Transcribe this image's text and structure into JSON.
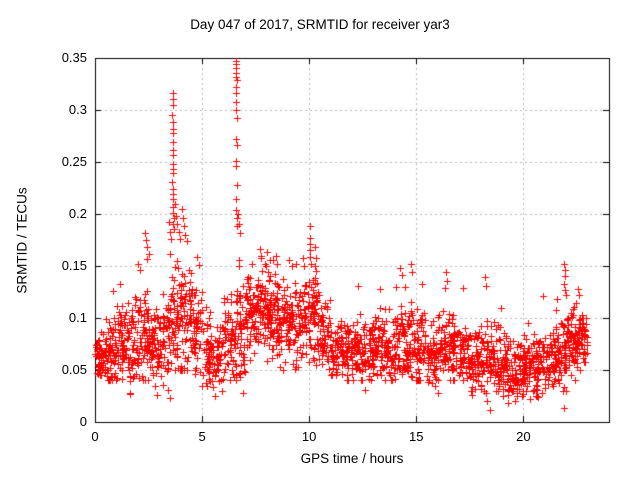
{
  "figure": {
    "background": "#ffffff",
    "axis_color": "#000000"
  },
  "chart_data": {
    "type": "scatter",
    "title": "Day 047 of 2017, SRMTID for receiver yar3",
    "xlabel": "GPS time / hours",
    "ylabel": "SRMTID / TECUs",
    "xlim": [
      0,
      24
    ],
    "ylim": [
      0,
      0.35
    ],
    "x_ticks": [
      {
        "v": 0,
        "label": "0"
      },
      {
        "v": 5,
        "label": "5"
      },
      {
        "v": 10,
        "label": "10"
      },
      {
        "v": 15,
        "label": "15"
      },
      {
        "v": 20,
        "label": "20"
      }
    ],
    "y_ticks": [
      {
        "v": 0,
        "label": "0"
      },
      {
        "v": 0.05,
        "label": "0.05"
      },
      {
        "v": 0.1,
        "label": "0.1"
      },
      {
        "v": 0.15,
        "label": "0.15"
      },
      {
        "v": 0.2,
        "label": "0.2"
      },
      {
        "v": 0.25,
        "label": "0.25"
      },
      {
        "v": 0.3,
        "label": "0.3"
      },
      {
        "v": 0.35,
        "label": "0.35"
      }
    ],
    "grid": {
      "show": true,
      "color": "#b9b9b9",
      "dash": [
        2,
        3
      ]
    },
    "legend": {
      "show": false
    },
    "series": [
      {
        "name": "SRMTID",
        "marker": {
          "shape": "plus",
          "color": "#ff0000",
          "size": 7,
          "line_width": 1
        },
        "points_explicit": [
          [
            3.62,
            0.316
          ],
          [
            3.64,
            0.311
          ],
          [
            3.63,
            0.305
          ],
          [
            3.61,
            0.295
          ],
          [
            3.66,
            0.288
          ],
          [
            3.62,
            0.282
          ],
          [
            3.64,
            0.278
          ],
          [
            3.63,
            0.269
          ],
          [
            3.65,
            0.262
          ],
          [
            3.62,
            0.257
          ],
          [
            3.66,
            0.248
          ],
          [
            3.63,
            0.243
          ],
          [
            3.64,
            0.239
          ],
          [
            3.61,
            0.231
          ],
          [
            3.65,
            0.224
          ],
          [
            3.63,
            0.219
          ],
          [
            3.66,
            0.214
          ],
          [
            3.62,
            0.207
          ],
          [
            3.64,
            0.201
          ],
          [
            3.67,
            0.196
          ],
          [
            3.63,
            0.19
          ],
          [
            3.68,
            0.186
          ],
          [
            3.45,
            0.192
          ],
          [
            3.5,
            0.183
          ],
          [
            3.55,
            0.176
          ],
          [
            3.72,
            0.21
          ],
          [
            3.78,
            0.198
          ],
          [
            3.85,
            0.19
          ],
          [
            3.9,
            0.183
          ],
          [
            3.95,
            0.176
          ],
          [
            4.05,
            0.205
          ],
          [
            4.1,
            0.196
          ],
          [
            4.15,
            0.188
          ],
          [
            4.22,
            0.18
          ],
          [
            4.3,
            0.174
          ],
          [
            2.35,
            0.182
          ],
          [
            2.4,
            0.175
          ],
          [
            2.45,
            0.168
          ],
          [
            2.5,
            0.162
          ],
          [
            2.42,
            0.157
          ],
          [
            6.57,
            0.347
          ],
          [
            6.59,
            0.344
          ],
          [
            6.58,
            0.34
          ],
          [
            6.6,
            0.336
          ],
          [
            6.57,
            0.332
          ],
          [
            6.61,
            0.329
          ],
          [
            6.59,
            0.322
          ],
          [
            6.58,
            0.316
          ],
          [
            6.6,
            0.308
          ],
          [
            6.57,
            0.3
          ],
          [
            6.62,
            0.292
          ],
          [
            6.59,
            0.272
          ],
          [
            6.61,
            0.266
          ],
          [
            6.58,
            0.251
          ],
          [
            6.6,
            0.246
          ],
          [
            6.62,
            0.228
          ],
          [
            6.59,
            0.214
          ],
          [
            6.57,
            0.204
          ],
          [
            6.63,
            0.196
          ],
          [
            6.65,
            0.188
          ],
          [
            6.7,
            0.2
          ],
          [
            6.73,
            0.19
          ],
          [
            6.76,
            0.182
          ],
          [
            10.02,
            0.188
          ],
          [
            10.05,
            0.177
          ],
          [
            10.03,
            0.171
          ],
          [
            10.06,
            0.165
          ],
          [
            10.02,
            0.159
          ],
          [
            10.07,
            0.152
          ],
          [
            10.25,
            0.168
          ],
          [
            10.3,
            0.158
          ],
          [
            7.35,
            0.152
          ],
          [
            7.7,
            0.166
          ],
          [
            7.75,
            0.158
          ],
          [
            8.05,
            0.163
          ],
          [
            8.15,
            0.156
          ],
          [
            8.5,
            0.152
          ],
          [
            9.05,
            0.156
          ],
          [
            9.4,
            0.152
          ],
          [
            9.7,
            0.158
          ],
          [
            9.75,
            0.15
          ],
          [
            4.75,
            0.159
          ],
          [
            4.85,
            0.151
          ],
          [
            14.25,
            0.148
          ],
          [
            14.32,
            0.141
          ],
          [
            14.75,
            0.152
          ],
          [
            14.8,
            0.144
          ],
          [
            16.38,
            0.144
          ],
          [
            16.42,
            0.136
          ],
          [
            16.35,
            0.129
          ],
          [
            18.2,
            0.139
          ],
          [
            18.24,
            0.131
          ],
          [
            2.03,
            0.152
          ],
          [
            2.08,
            0.146
          ],
          [
            1.15,
            0.133
          ],
          [
            0.85,
            0.126
          ],
          [
            12.3,
            0.131
          ],
          [
            13.3,
            0.128
          ],
          [
            15.25,
            0.133
          ],
          [
            17.2,
            0.129
          ],
          [
            20.9,
            0.121
          ],
          [
            21.9,
            0.152
          ],
          [
            21.93,
            0.146
          ],
          [
            21.96,
            0.14
          ],
          [
            21.91,
            0.133
          ],
          [
            21.95,
            0.127
          ],
          [
            22.0,
            0.122
          ],
          [
            22.55,
            0.128
          ],
          [
            22.6,
            0.122
          ],
          [
            18.45,
            0.012
          ],
          [
            21.9,
            0.013
          ],
          [
            19.3,
            0.018
          ],
          [
            18.3,
            0.02
          ],
          [
            19.6,
            0.02
          ],
          [
            20.3,
            0.022
          ],
          [
            3.5,
            0.023
          ],
          [
            5.6,
            0.025
          ],
          [
            2.9,
            0.026
          ],
          [
            6.9,
            0.028
          ],
          [
            1.65,
            0.027
          ],
          [
            12.6,
            0.031
          ],
          [
            16.0,
            0.028
          ],
          [
            17.6,
            0.026
          ],
          [
            20.7,
            0.024
          ]
        ],
        "density_bins": [
          [
            0.0,
            0.5,
            55,
            0.045,
            0.095,
            0.065
          ],
          [
            0.5,
            1.0,
            55,
            0.04,
            0.115,
            0.07
          ],
          [
            1.0,
            1.5,
            55,
            0.035,
            0.125,
            0.08
          ],
          [
            1.5,
            2.0,
            55,
            0.028,
            0.135,
            0.07
          ],
          [
            2.0,
            2.5,
            55,
            0.04,
            0.145,
            0.08
          ],
          [
            2.5,
            3.0,
            50,
            0.035,
            0.12,
            0.075
          ],
          [
            3.0,
            3.5,
            50,
            0.03,
            0.14,
            0.075
          ],
          [
            3.5,
            4.0,
            60,
            0.05,
            0.19,
            0.1
          ],
          [
            4.0,
            4.5,
            55,
            0.05,
            0.17,
            0.1
          ],
          [
            4.5,
            5.0,
            50,
            0.035,
            0.155,
            0.085
          ],
          [
            5.0,
            5.5,
            45,
            0.035,
            0.12,
            0.07
          ],
          [
            5.5,
            6.0,
            40,
            0.03,
            0.1,
            0.06
          ],
          [
            6.0,
            6.5,
            50,
            0.04,
            0.135,
            0.08
          ],
          [
            6.5,
            7.0,
            60,
            0.04,
            0.19,
            0.09
          ],
          [
            7.0,
            7.5,
            55,
            0.06,
            0.15,
            0.1
          ],
          [
            7.5,
            8.0,
            60,
            0.06,
            0.16,
            0.11
          ],
          [
            8.0,
            8.5,
            60,
            0.055,
            0.16,
            0.105
          ],
          [
            8.5,
            9.0,
            55,
            0.05,
            0.15,
            0.1
          ],
          [
            9.0,
            9.5,
            55,
            0.05,
            0.15,
            0.095
          ],
          [
            9.5,
            10.0,
            55,
            0.055,
            0.145,
            0.1
          ],
          [
            10.0,
            10.5,
            55,
            0.055,
            0.15,
            0.1
          ],
          [
            10.5,
            11.0,
            50,
            0.05,
            0.13,
            0.085
          ],
          [
            11.0,
            11.5,
            50,
            0.045,
            0.11,
            0.07
          ],
          [
            11.5,
            12.0,
            50,
            0.04,
            0.105,
            0.065
          ],
          [
            12.0,
            12.5,
            50,
            0.04,
            0.12,
            0.07
          ],
          [
            12.5,
            13.0,
            50,
            0.04,
            0.11,
            0.07
          ],
          [
            13.0,
            13.5,
            50,
            0.045,
            0.12,
            0.075
          ],
          [
            13.5,
            14.0,
            50,
            0.04,
            0.12,
            0.07
          ],
          [
            14.0,
            14.5,
            50,
            0.045,
            0.13,
            0.08
          ],
          [
            14.5,
            15.0,
            50,
            0.04,
            0.13,
            0.075
          ],
          [
            15.0,
            15.5,
            50,
            0.04,
            0.12,
            0.07
          ],
          [
            15.5,
            16.0,
            50,
            0.035,
            0.11,
            0.065
          ],
          [
            16.0,
            16.5,
            50,
            0.04,
            0.125,
            0.07
          ],
          [
            16.5,
            17.0,
            50,
            0.04,
            0.115,
            0.07
          ],
          [
            17.0,
            17.5,
            50,
            0.035,
            0.11,
            0.065
          ],
          [
            17.5,
            18.0,
            50,
            0.03,
            0.105,
            0.06
          ],
          [
            18.0,
            18.5,
            50,
            0.025,
            0.115,
            0.06
          ],
          [
            18.5,
            19.0,
            50,
            0.03,
            0.11,
            0.06
          ],
          [
            19.0,
            19.5,
            50,
            0.025,
            0.1,
            0.055
          ],
          [
            19.5,
            20.0,
            50,
            0.025,
            0.095,
            0.05
          ],
          [
            20.0,
            20.5,
            50,
            0.03,
            0.095,
            0.055
          ],
          [
            20.5,
            21.0,
            50,
            0.025,
            0.095,
            0.05
          ],
          [
            21.0,
            21.5,
            50,
            0.03,
            0.1,
            0.06
          ],
          [
            21.5,
            22.0,
            55,
            0.03,
            0.12,
            0.065
          ],
          [
            22.0,
            22.5,
            55,
            0.04,
            0.125,
            0.075
          ],
          [
            22.5,
            23.0,
            60,
            0.05,
            0.115,
            0.08
          ]
        ]
      }
    ]
  }
}
